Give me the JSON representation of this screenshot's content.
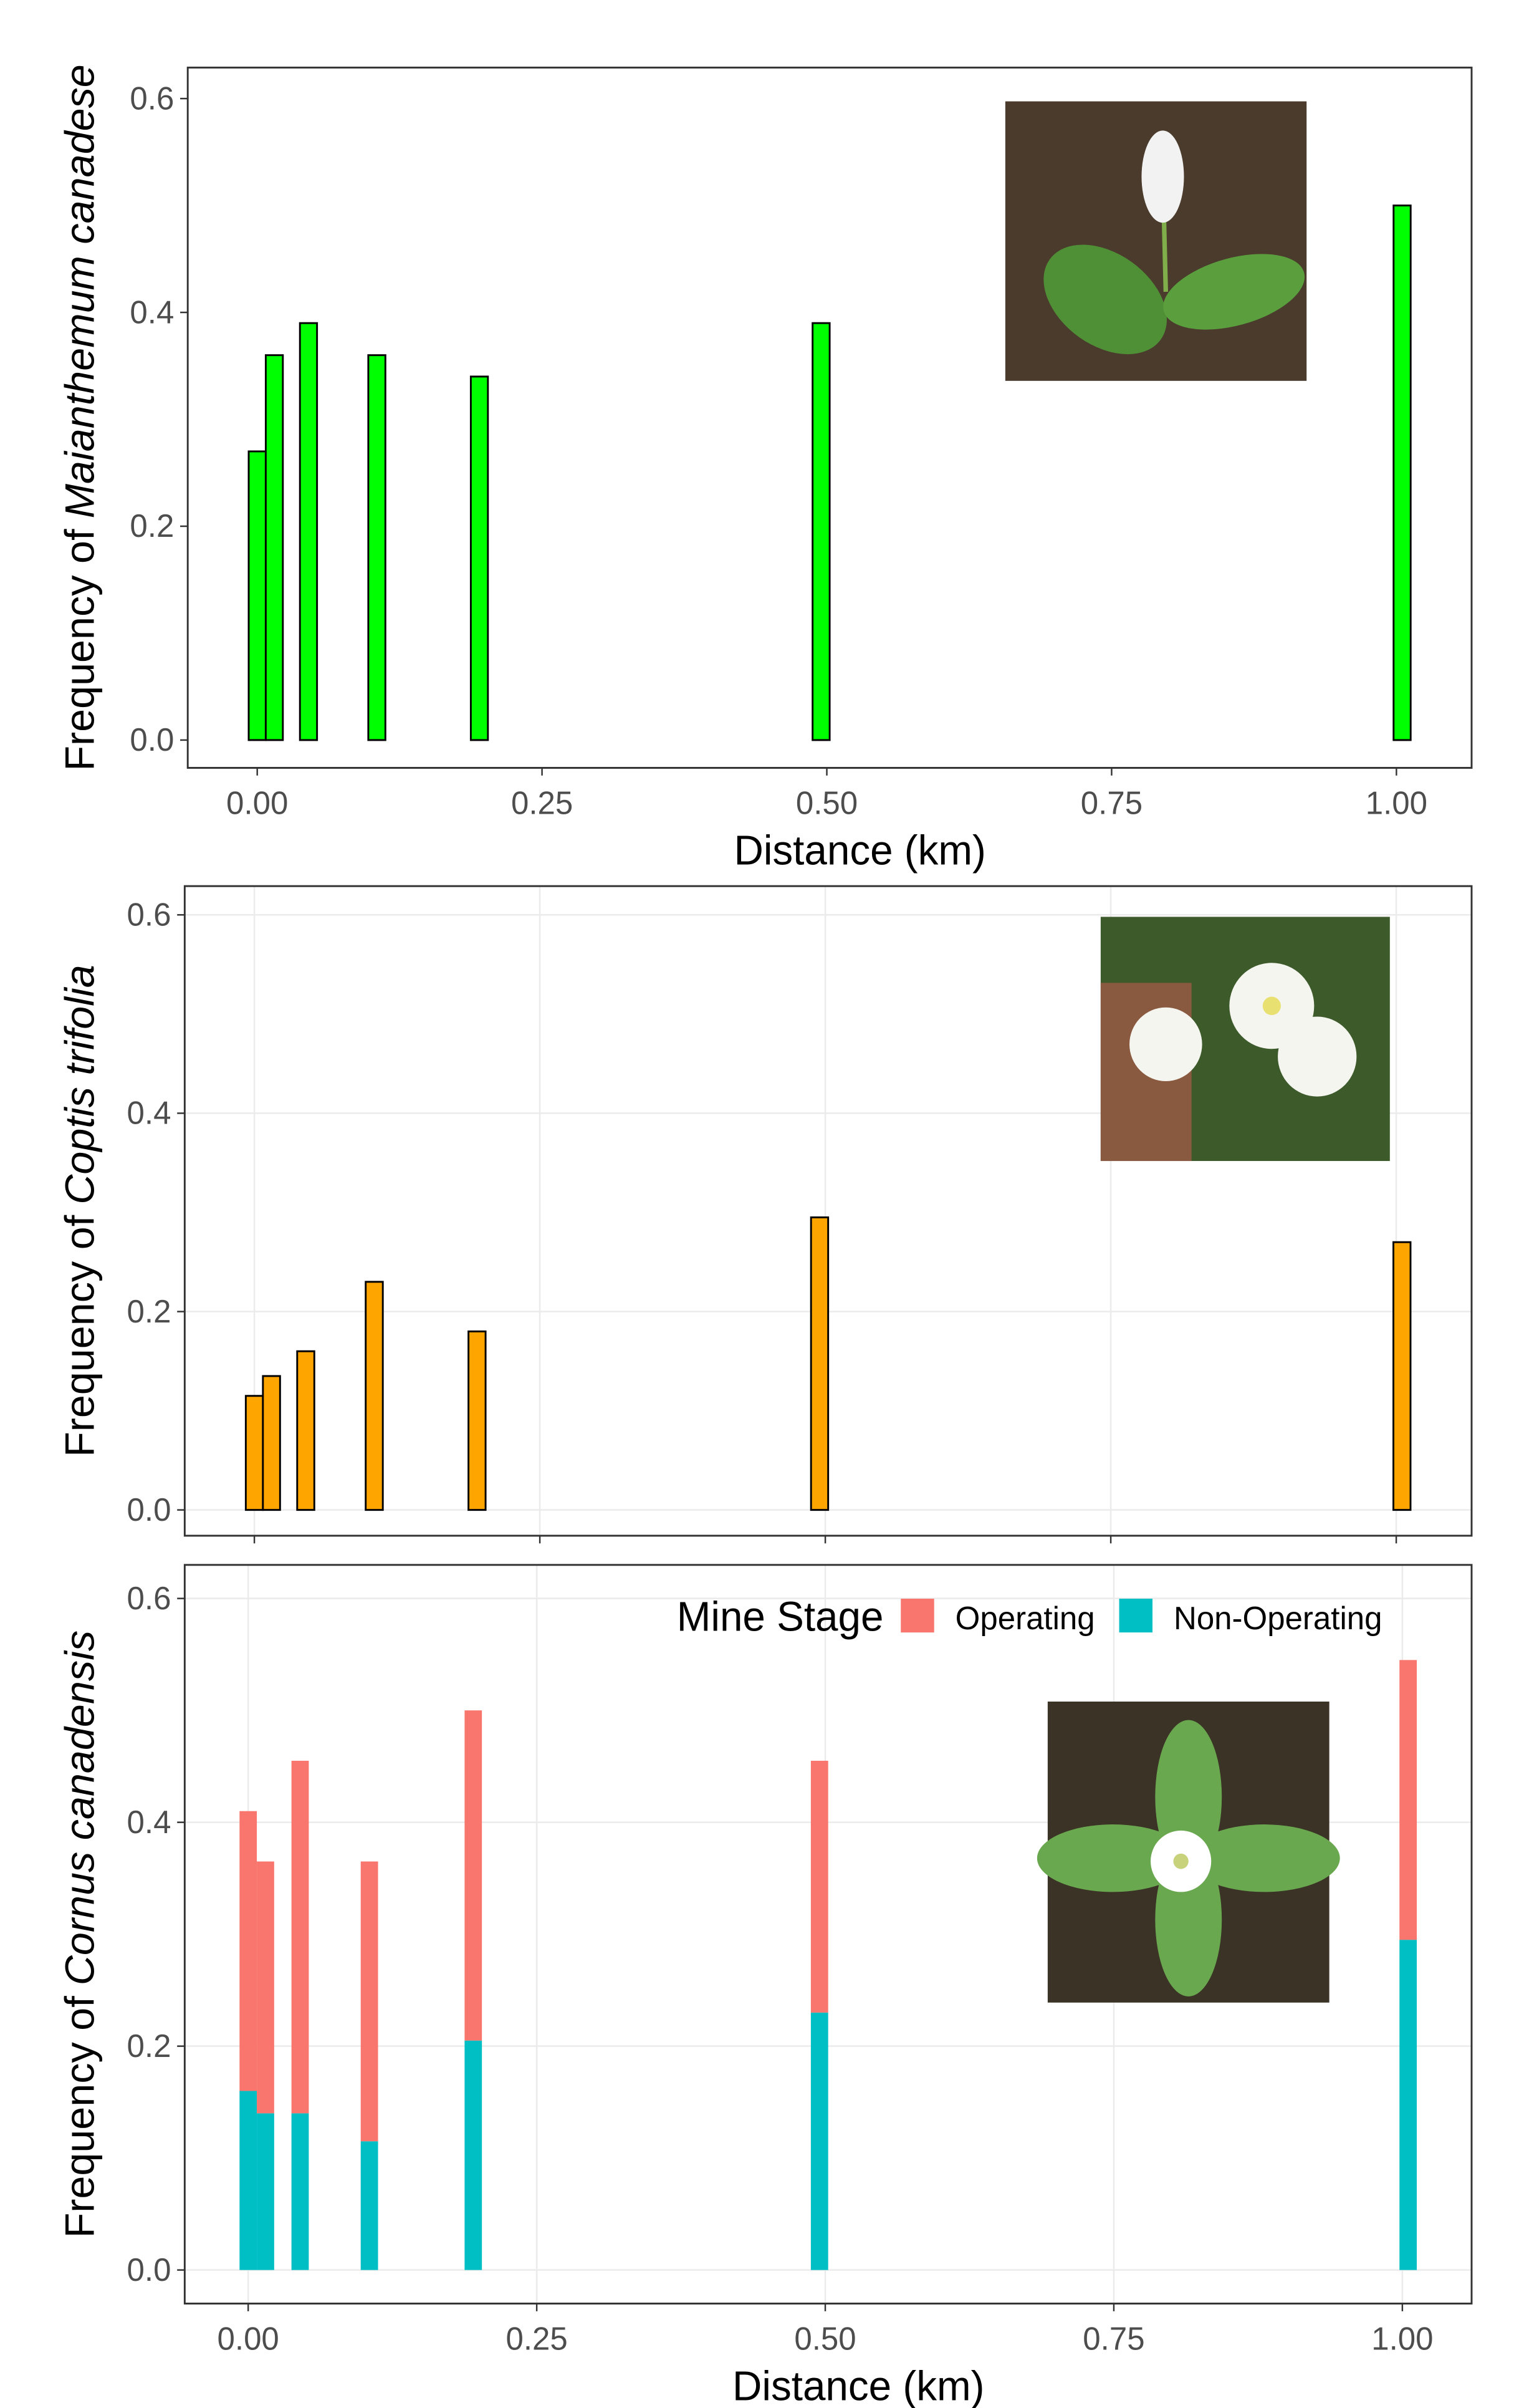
{
  "chart_data": [
    {
      "type": "bar",
      "x": [
        0,
        0.015,
        0.045,
        0.105,
        0.195,
        0.495,
        1.005
      ],
      "values": [
        0.27,
        0.36,
        0.39,
        0.36,
        0.34,
        0.39,
        0.5
      ],
      "color": "#00ff00",
      "ylabel": {
        "text": "Frequency of",
        "species": "Maianthemum canadese"
      },
      "xlabel": "Distance (km)",
      "xlim": [
        -0.061,
        1.066
      ],
      "ylim": [
        -0.026,
        0.629
      ],
      "xticks": [
        {
          "value": 0,
          "label": "0.00"
        },
        {
          "value": 0.25,
          "label": "0.25"
        },
        {
          "value": 0.5,
          "label": "0.50"
        },
        {
          "value": 0.75,
          "label": "0.75"
        },
        {
          "value": 1,
          "label": "1.00"
        }
      ],
      "yticks": [
        {
          "value": 0,
          "label": "0.0"
        },
        {
          "value": 0.2,
          "label": "0.2"
        },
        {
          "value": 0.4,
          "label": "0.4"
        },
        {
          "value": 0.6,
          "label": "0.6"
        }
      ],
      "grid": false
    },
    {
      "type": "bar",
      "x": [
        0,
        0.015,
        0.045,
        0.105,
        0.195,
        0.495,
        1.005
      ],
      "values": [
        0.115,
        0.135,
        0.16,
        0.23,
        0.18,
        0.295,
        0.27
      ],
      "color": "#ffa500",
      "ylabel": {
        "text": "Frequency of",
        "species": "Coptis trifolia"
      },
      "xlim": [
        -0.061,
        1.066
      ],
      "ylim": [
        -0.026,
        0.629
      ],
      "xticks": [
        0,
        0.25,
        0.5,
        0.75,
        1
      ],
      "yticks": [
        {
          "value": 0,
          "label": "0.0"
        },
        {
          "value": 0.2,
          "label": "0.2"
        },
        {
          "value": 0.4,
          "label": "0.4"
        },
        {
          "value": 0.6,
          "label": "0.6"
        }
      ],
      "grid": true
    },
    {
      "type": "bar",
      "stacked": true,
      "x": [
        0,
        0.015,
        0.045,
        0.105,
        0.195,
        0.495,
        1.005
      ],
      "series": [
        {
          "name": "Non-Operating",
          "color": "#00bfc4",
          "values": [
            0.16,
            0.14,
            0.14,
            0.115,
            0.205,
            0.23,
            0.295
          ]
        },
        {
          "name": "Operating",
          "color": "#f8766d",
          "values": [
            0.25,
            0.225,
            0.315,
            0.25,
            0.295,
            0.225,
            0.25
          ]
        }
      ],
      "legend_title": "Mine Stage",
      "legend": "top-right",
      "ylabel": {
        "text": "Frequency of",
        "species": "Cornus canadensis"
      },
      "xlabel": "Distance (km)",
      "xlim": [
        -0.055,
        1.06
      ],
      "ylim": [
        -0.03,
        0.63
      ],
      "xticks": [
        {
          "value": 0,
          "label": "0.00"
        },
        {
          "value": 0.25,
          "label": "0.25"
        },
        {
          "value": 0.5,
          "label": "0.50"
        },
        {
          "value": 0.75,
          "label": "0.75"
        },
        {
          "value": 1,
          "label": "1.00"
        }
      ],
      "yticks": [
        {
          "value": 0,
          "label": "0.0"
        },
        {
          "value": 0.2,
          "label": "0.2"
        },
        {
          "value": 0.4,
          "label": "0.4"
        },
        {
          "value": 0.6,
          "label": "0.6"
        }
      ],
      "grid": true
    }
  ]
}
